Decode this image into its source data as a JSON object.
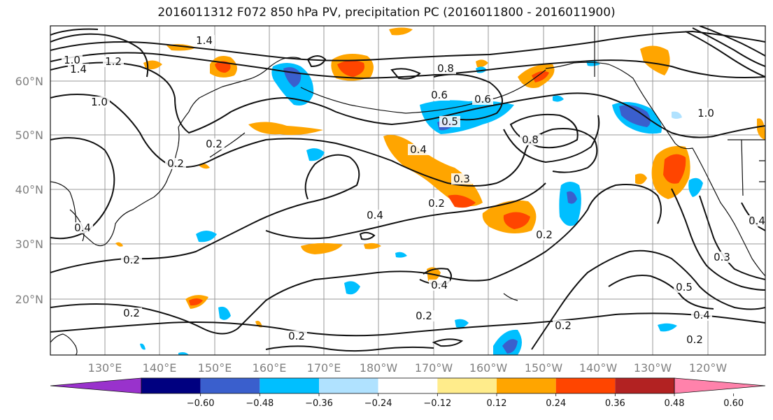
{
  "title": "2016011312 F072 850 hPa PV, precipitation PC (2016011800 - 2016011900)",
  "lat_labels": [
    "60°N",
    "50°N",
    "40°N",
    "30°N",
    "20°N"
  ],
  "lon_labels": [
    "130°E",
    "140°E",
    "150°E",
    "160°E",
    "170°E",
    "180°W",
    "170°W",
    "160°W",
    "150°W",
    "140°W",
    "130°W",
    "120°W"
  ],
  "contour_labels": [
    "1.4",
    "1.0",
    "1.4",
    "1.2",
    "1.0",
    "0.6",
    "0.8",
    "0.6",
    "0.5",
    "0.8",
    "0.2",
    "0.4",
    "0.3",
    "0.2",
    "0.4",
    "0.2",
    "0.2",
    "0.2",
    "0.4",
    "0.2",
    "0.2",
    "0.2",
    "0.5",
    "0.4",
    "0.2",
    "0.3",
    "0.4",
    "1.0",
    "0.2",
    "0.4"
  ],
  "colorbar": {
    "colors": [
      "#9932cc",
      "#000080",
      "#3a5fcd",
      "#00bfff",
      "#b0e2ff",
      "#ffffff",
      "#ffec8b",
      "#ffa500",
      "#ff4500",
      "#b22222",
      "#ff82ab"
    ],
    "tick_labels": [
      "−0.60",
      "−0.48",
      "−0.36",
      "−0.24",
      "−0.12",
      "0.12",
      "0.24",
      "0.36",
      "0.48",
      "0.60"
    ]
  }
}
